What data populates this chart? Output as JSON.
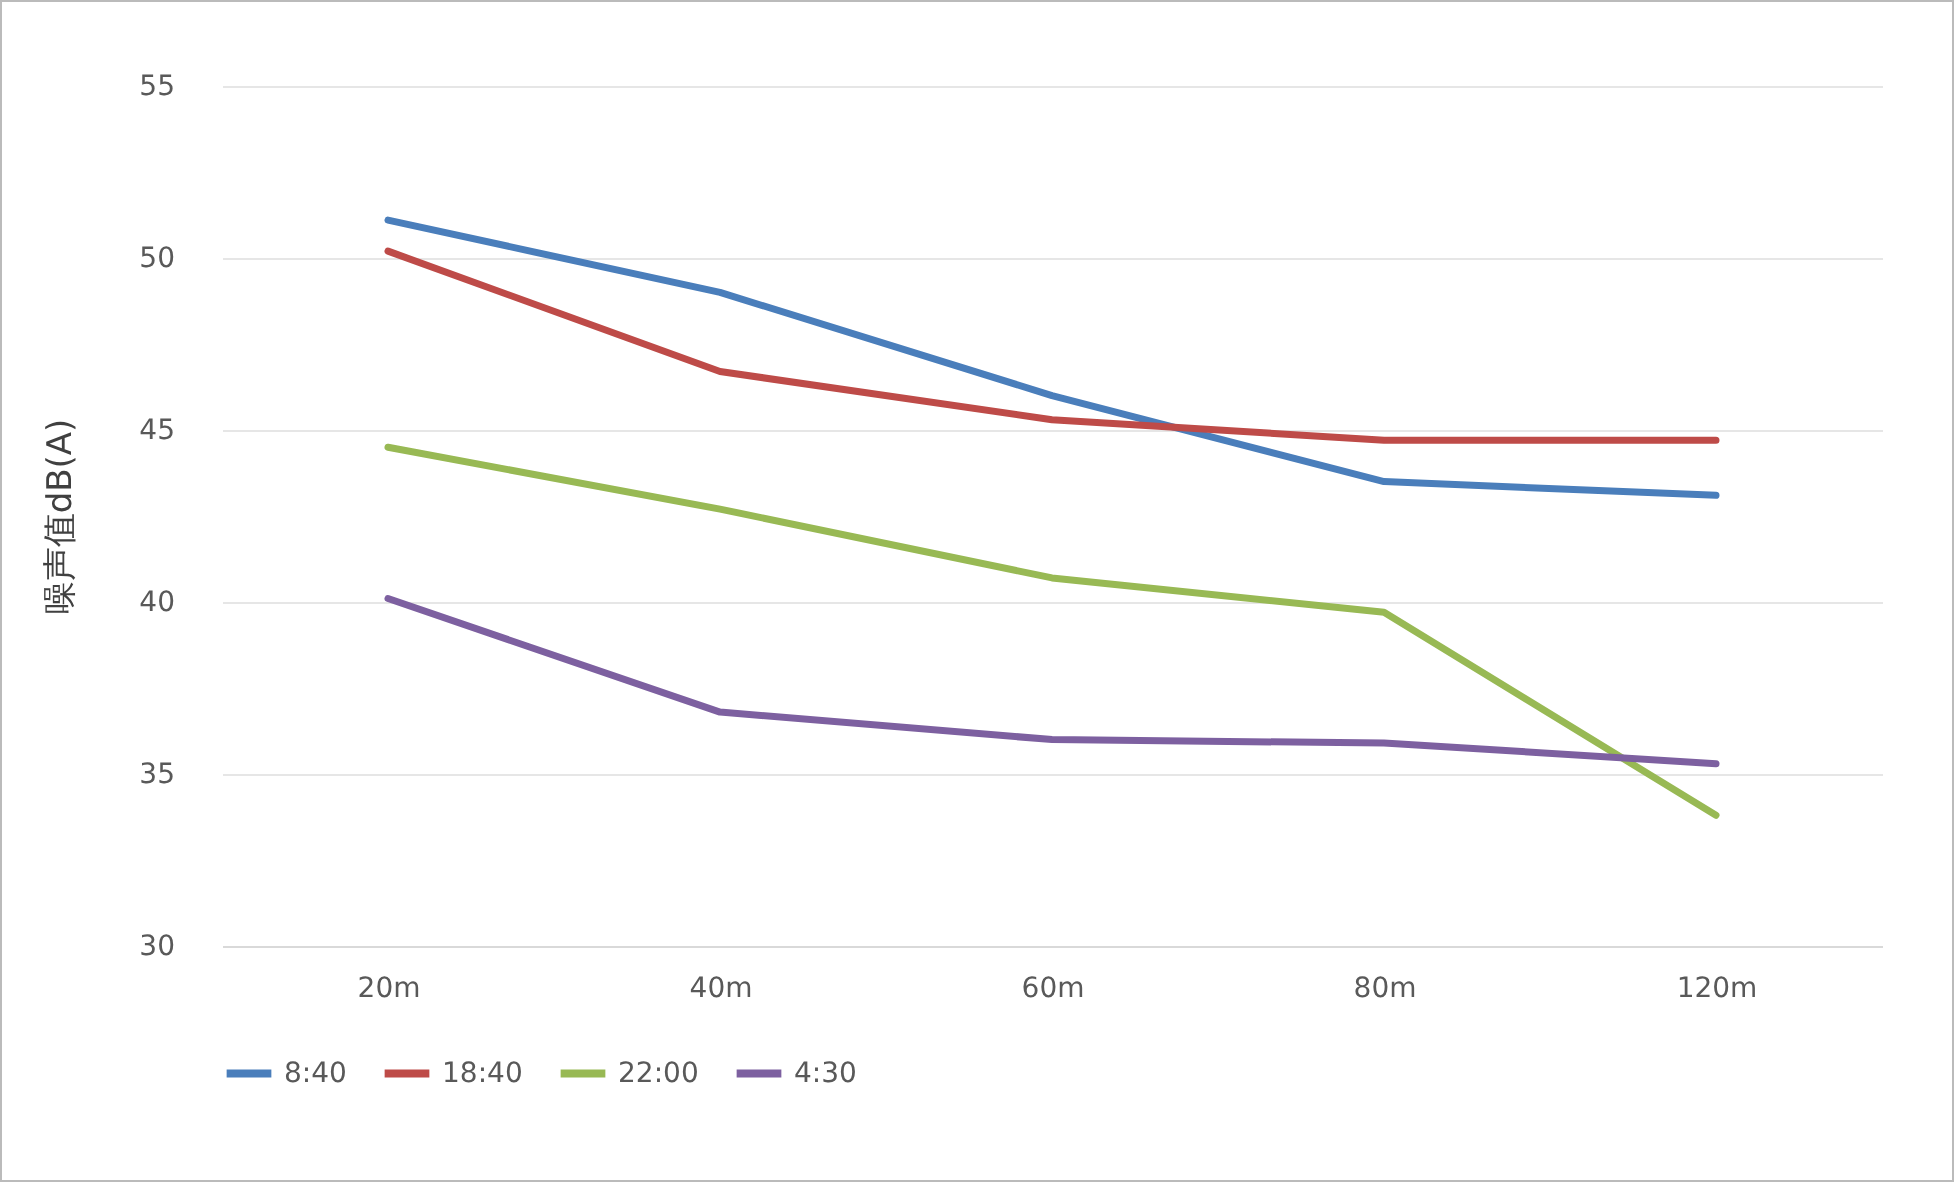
{
  "chart_data": {
    "type": "line",
    "ylabel": "噪声值dB(A)",
    "categories": [
      "20m",
      "40m",
      "60m",
      "80m",
      "120m"
    ],
    "ylim": [
      30,
      55
    ],
    "yticks": [
      30,
      35,
      40,
      45,
      50,
      55
    ],
    "grid": "y",
    "legend": "bottom",
    "marker": "none",
    "line_style": "solid",
    "series": [
      {
        "name": "8:40",
        "color": "#4a7ebb",
        "values": [
          51.1,
          49.0,
          46.0,
          43.5,
          43.1
        ]
      },
      {
        "name": "18:40",
        "color": "#be4b48",
        "values": [
          50.2,
          46.7,
          45.3,
          44.7,
          44.7
        ]
      },
      {
        "name": "22:00",
        "color": "#98b954",
        "values": [
          44.5,
          42.7,
          40.7,
          39.7,
          33.8
        ]
      },
      {
        "name": "4:30",
        "color": "#7d60a0",
        "values": [
          40.1,
          36.8,
          36.0,
          35.9,
          35.3
        ]
      }
    ]
  }
}
